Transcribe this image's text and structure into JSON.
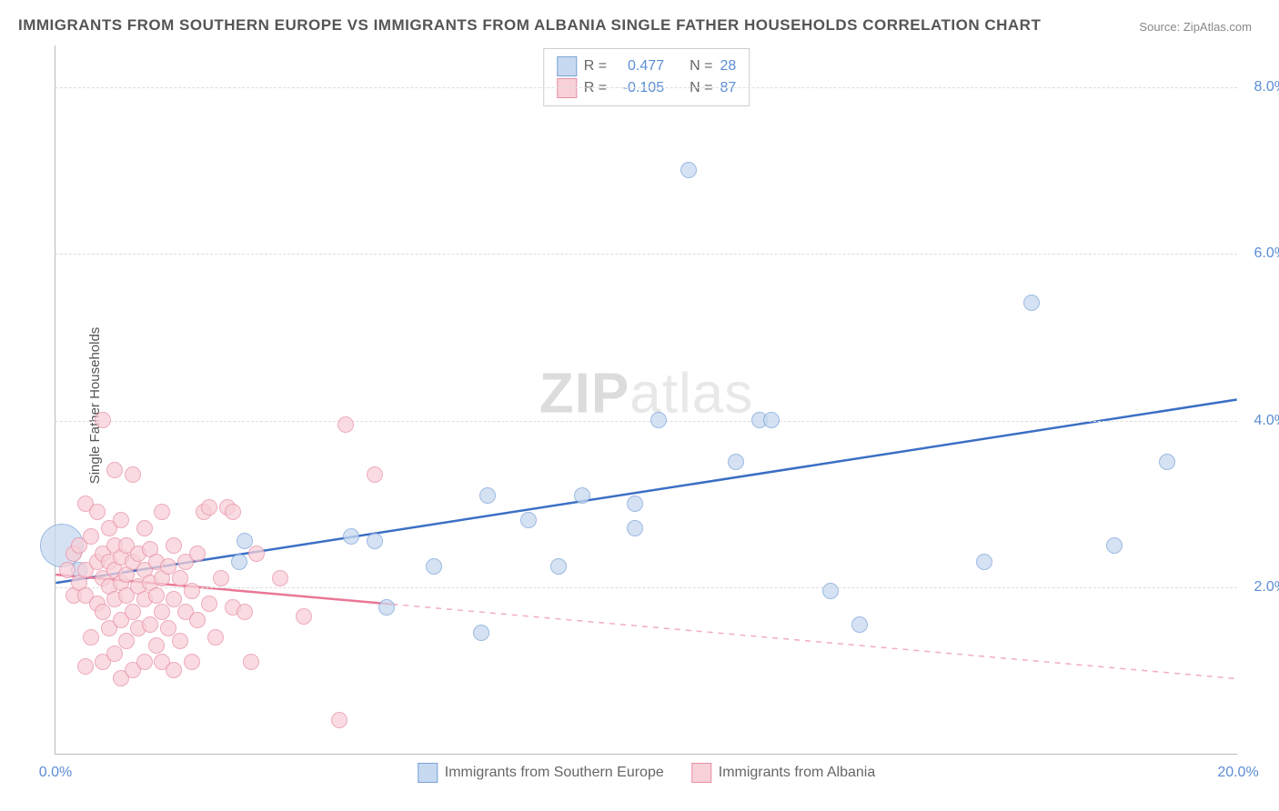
{
  "title": "IMMIGRANTS FROM SOUTHERN EUROPE VS IMMIGRANTS FROM ALBANIA SINGLE FATHER HOUSEHOLDS CORRELATION CHART",
  "source_label": "Source:",
  "source_value": "ZipAtlas.com",
  "ylabel": "Single Father Households",
  "watermark_bold": "ZIP",
  "watermark_light": "atlas",
  "chart": {
    "type": "scatter",
    "xlim": [
      0,
      20
    ],
    "ylim": [
      0,
      8.5
    ],
    "xticks": [
      {
        "v": 0,
        "label": "0.0%"
      },
      {
        "v": 20,
        "label": "20.0%"
      }
    ],
    "yticks": [
      {
        "v": 2,
        "label": "2.0%"
      },
      {
        "v": 4,
        "label": "4.0%"
      },
      {
        "v": 6,
        "label": "6.0%"
      },
      {
        "v": 8,
        "label": "8.0%"
      }
    ],
    "grid_color": "#dddddd",
    "background": "#ffffff",
    "point_radius": 9,
    "point_stroke_width": 1.5,
    "series": [
      {
        "name": "Immigrants from Southern Europe",
        "fill": "#c7d9f0",
        "stroke": "#7ba3d9",
        "line_color": "#3b6fc4",
        "R": "0.477",
        "N": "28",
        "regression": {
          "x1": 0,
          "y1": 2.05,
          "x2": 20,
          "y2": 4.25,
          "solid_until": 20,
          "dash_after": false
        },
        "points": [
          [
            0.1,
            2.5,
            24
          ],
          [
            0.4,
            2.2,
            9
          ],
          [
            3.2,
            2.55,
            9
          ],
          [
            3.1,
            2.3,
            9
          ],
          [
            5.0,
            2.6,
            9
          ],
          [
            5.4,
            2.55,
            9
          ],
          [
            5.6,
            1.75,
            9
          ],
          [
            6.4,
            2.25,
            9
          ],
          [
            7.2,
            1.45,
            9
          ],
          [
            7.3,
            3.1,
            9
          ],
          [
            8.0,
            2.8,
            9
          ],
          [
            8.5,
            2.25,
            9
          ],
          [
            8.9,
            3.1,
            9
          ],
          [
            9.8,
            2.7,
            9
          ],
          [
            9.8,
            3.0,
            9
          ],
          [
            10.2,
            4.0,
            9
          ],
          [
            10.7,
            7.0,
            9
          ],
          [
            11.5,
            3.5,
            9
          ],
          [
            11.9,
            4.0,
            9
          ],
          [
            12.1,
            4.0,
            9
          ],
          [
            13.1,
            1.95,
            9
          ],
          [
            13.6,
            1.55,
            9
          ],
          [
            15.7,
            2.3,
            9
          ],
          [
            16.5,
            5.4,
            9
          ],
          [
            17.9,
            2.5,
            9
          ],
          [
            18.8,
            3.5,
            9
          ]
        ]
      },
      {
        "name": "Immigrants from Albania",
        "fill": "#f7d0d8",
        "stroke": "#e98fa6",
        "line_color": "#e97795",
        "R": "-0.105",
        "N": "87",
        "regression": {
          "x1": 0,
          "y1": 2.15,
          "x2": 20,
          "y2": 0.9,
          "solid_until": 5.7,
          "dash_after": true
        },
        "points": [
          [
            0.2,
            2.2,
            9
          ],
          [
            0.3,
            1.9,
            9
          ],
          [
            0.3,
            2.4,
            9
          ],
          [
            0.4,
            2.05,
            9
          ],
          [
            0.4,
            2.5,
            9
          ],
          [
            0.5,
            1.05,
            9
          ],
          [
            0.5,
            1.9,
            9
          ],
          [
            0.5,
            2.2,
            9
          ],
          [
            0.5,
            3.0,
            9
          ],
          [
            0.6,
            1.4,
            9
          ],
          [
            0.6,
            2.6,
            9
          ],
          [
            0.7,
            1.8,
            9
          ],
          [
            0.7,
            2.3,
            9
          ],
          [
            0.7,
            2.9,
            9
          ],
          [
            0.8,
            1.1,
            9
          ],
          [
            0.8,
            1.7,
            9
          ],
          [
            0.8,
            2.1,
            9
          ],
          [
            0.8,
            2.4,
            9
          ],
          [
            0.8,
            4.0,
            9
          ],
          [
            0.9,
            1.5,
            9
          ],
          [
            0.9,
            2.0,
            9
          ],
          [
            0.9,
            2.3,
            9
          ],
          [
            0.9,
            2.7,
            9
          ],
          [
            1.0,
            1.2,
            9
          ],
          [
            1.0,
            1.85,
            9
          ],
          [
            1.0,
            2.2,
            9
          ],
          [
            1.0,
            2.5,
            9
          ],
          [
            1.0,
            3.4,
            9
          ],
          [
            1.1,
            0.9,
            9
          ],
          [
            1.1,
            1.6,
            9
          ],
          [
            1.1,
            2.05,
            9
          ],
          [
            1.1,
            2.35,
            9
          ],
          [
            1.1,
            2.8,
            9
          ],
          [
            1.2,
            1.35,
            9
          ],
          [
            1.2,
            1.9,
            9
          ],
          [
            1.2,
            2.15,
            9
          ],
          [
            1.2,
            2.5,
            9
          ],
          [
            1.3,
            1.0,
            9
          ],
          [
            1.3,
            1.7,
            9
          ],
          [
            1.3,
            2.3,
            9
          ],
          [
            1.3,
            3.35,
            9
          ],
          [
            1.4,
            1.5,
            9
          ],
          [
            1.4,
            2.0,
            9
          ],
          [
            1.4,
            2.4,
            9
          ],
          [
            1.5,
            1.1,
            9
          ],
          [
            1.5,
            1.85,
            9
          ],
          [
            1.5,
            2.2,
            9
          ],
          [
            1.5,
            2.7,
            9
          ],
          [
            1.6,
            1.55,
            9
          ],
          [
            1.6,
            2.05,
            9
          ],
          [
            1.6,
            2.45,
            9
          ],
          [
            1.7,
            1.3,
            9
          ],
          [
            1.7,
            1.9,
            9
          ],
          [
            1.7,
            2.3,
            9
          ],
          [
            1.8,
            1.1,
            9
          ],
          [
            1.8,
            1.7,
            9
          ],
          [
            1.8,
            2.1,
            9
          ],
          [
            1.8,
            2.9,
            9
          ],
          [
            1.9,
            1.5,
            9
          ],
          [
            1.9,
            2.25,
            9
          ],
          [
            2.0,
            1.0,
            9
          ],
          [
            2.0,
            1.85,
            9
          ],
          [
            2.0,
            2.5,
            9
          ],
          [
            2.1,
            1.35,
            9
          ],
          [
            2.1,
            2.1,
            9
          ],
          [
            2.2,
            1.7,
            9
          ],
          [
            2.2,
            2.3,
            9
          ],
          [
            2.3,
            1.1,
            9
          ],
          [
            2.3,
            1.95,
            9
          ],
          [
            2.4,
            1.6,
            9
          ],
          [
            2.4,
            2.4,
            9
          ],
          [
            2.5,
            2.9,
            9
          ],
          [
            2.6,
            1.8,
            9
          ],
          [
            2.6,
            2.95,
            9
          ],
          [
            2.7,
            1.4,
            9
          ],
          [
            2.8,
            2.1,
            9
          ],
          [
            2.9,
            2.95,
            9
          ],
          [
            3.0,
            1.75,
            9
          ],
          [
            3.2,
            1.7,
            9
          ],
          [
            3.3,
            1.1,
            9
          ],
          [
            3.4,
            2.4,
            9
          ],
          [
            3.8,
            2.1,
            9
          ],
          [
            4.2,
            1.65,
            9
          ],
          [
            4.8,
            0.4,
            9
          ],
          [
            4.9,
            3.95,
            9
          ],
          [
            5.4,
            3.35,
            9
          ],
          [
            3.0,
            2.9,
            9
          ]
        ]
      }
    ]
  },
  "legend": {
    "r_label": "R =",
    "n_label": "N ="
  }
}
